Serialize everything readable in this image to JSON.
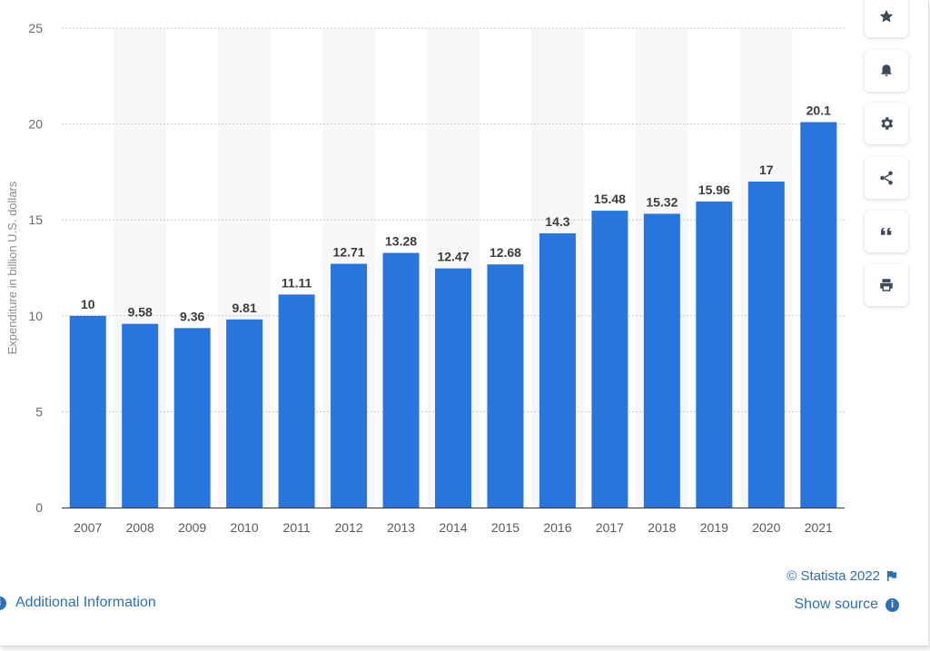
{
  "chart_data": {
    "type": "bar",
    "categories": [
      "2007",
      "2008",
      "2009",
      "2010",
      "2011",
      "2012",
      "2013",
      "2014",
      "2015",
      "2016",
      "2017",
      "2018",
      "2019",
      "2020",
      "2021"
    ],
    "values": [
      10,
      9.58,
      9.36,
      9.81,
      11.11,
      12.71,
      13.28,
      12.47,
      12.68,
      14.3,
      15.48,
      15.32,
      15.96,
      17,
      20.1
    ],
    "value_labels": [
      "10",
      "9.58",
      "9.36",
      "9.81",
      "11.11",
      "12.71",
      "13.28",
      "12.47",
      "12.68",
      "14.3",
      "15.48",
      "15.32",
      "15.96",
      "17",
      "20.1"
    ],
    "ylabel": "Expenditure in billion U.S. dollars",
    "ylim": [
      0,
      25
    ],
    "yticks": [
      "0",
      "5",
      "10",
      "15",
      "20",
      "25"
    ],
    "grid": true,
    "bar_color": "#2876dd"
  },
  "toolbar": {
    "buttons": [
      {
        "icon": "star-icon",
        "name": "bookmark-button"
      },
      {
        "icon": "bell-icon",
        "name": "notification-button"
      },
      {
        "icon": "gear-icon",
        "name": "settings-button"
      },
      {
        "icon": "share-icon",
        "name": "share-button"
      },
      {
        "icon": "quote-icon",
        "name": "cite-button"
      },
      {
        "icon": "print-icon",
        "name": "print-button"
      }
    ]
  },
  "footer": {
    "copyright": "© Statista 2022",
    "show_source": "Show source",
    "additional_information": "Additional Information"
  },
  "colors": {
    "accent": "#2a71b6",
    "bar": "#2876dd"
  }
}
